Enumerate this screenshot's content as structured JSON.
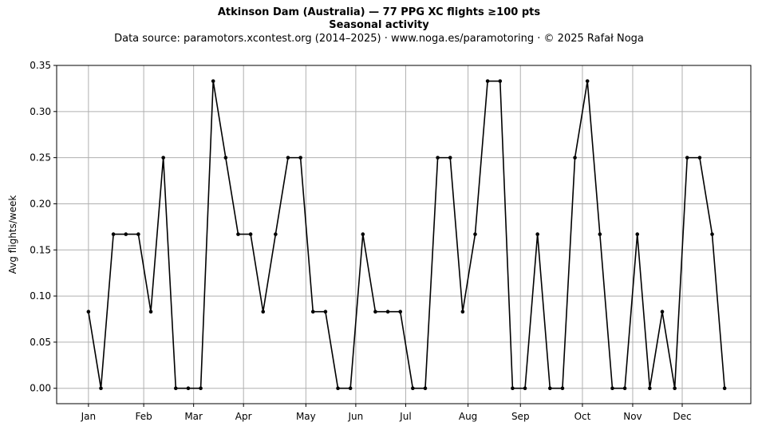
{
  "figure": {
    "title": "Atkinson Dam (Australia)  —  77 PPG XC flights ≥100 pts",
    "subtitle": "Seasonal activity",
    "source": "Data source: paramotors.xcontest.org (2014–2025)  ·  www.noga.es/paramotoring  ·  © 2025 Rafał Noga"
  },
  "chart_data": {
    "type": "line",
    "title": "Atkinson Dam (Australia)  —  77 PPG XC flights ≥100 pts",
    "subtitle": "Seasonal activity",
    "xlabel": "",
    "ylabel": "Avg flights/week",
    "x_unit": "week of year",
    "x": [
      1,
      2,
      3,
      4,
      5,
      6,
      7,
      8,
      9,
      10,
      11,
      12,
      13,
      14,
      15,
      16,
      17,
      18,
      19,
      20,
      21,
      22,
      23,
      24,
      25,
      26,
      27,
      28,
      29,
      30,
      31,
      32,
      33,
      34,
      35,
      36,
      37,
      38,
      39,
      40,
      41,
      42,
      43,
      44,
      45,
      46,
      47,
      48,
      49,
      50,
      51,
      52
    ],
    "y": [
      0.083,
      0,
      0.167,
      0.167,
      0.167,
      0.083,
      0.25,
      0,
      0,
      0,
      0.333,
      0.25,
      0.167,
      0.167,
      0.083,
      0.167,
      0.25,
      0.25,
      0.083,
      0.083,
      0,
      0,
      0.167,
      0.083,
      0.083,
      0.083,
      0,
      0,
      0.25,
      0.25,
      0.083,
      0.167,
      0.333,
      0.333,
      0,
      0,
      0.167,
      0,
      0,
      0.25,
      0.333,
      0.167,
      0,
      0,
      0.167,
      0,
      0.083,
      0,
      0.25,
      0.25,
      0.167,
      0
    ],
    "xticks": [
      {
        "label": "Jan",
        "week": 1
      },
      {
        "label": "Feb",
        "week": 5.43
      },
      {
        "label": "Mar",
        "week": 9.43
      },
      {
        "label": "Apr",
        "week": 13.43
      },
      {
        "label": "May",
        "week": 18.43
      },
      {
        "label": "Jun",
        "week": 22.43
      },
      {
        "label": "Jul",
        "week": 26.43
      },
      {
        "label": "Aug",
        "week": 31.43
      },
      {
        "label": "Sep",
        "week": 35.63
      },
      {
        "label": "Oct",
        "week": 40.6
      },
      {
        "label": "Nov",
        "week": 44.63
      },
      {
        "label": "Dec",
        "week": 48.6
      }
    ],
    "yticks": [
      "0.00",
      "0.05",
      "0.10",
      "0.15",
      "0.20",
      "0.25",
      "0.30",
      "0.35"
    ],
    "xlim": [
      -1.55,
      54.1
    ],
    "ylim": [
      -0.0167,
      0.35
    ],
    "grid": true,
    "line_color": "#000000",
    "grid_color": "#b0b0b0",
    "marker": "dot"
  }
}
